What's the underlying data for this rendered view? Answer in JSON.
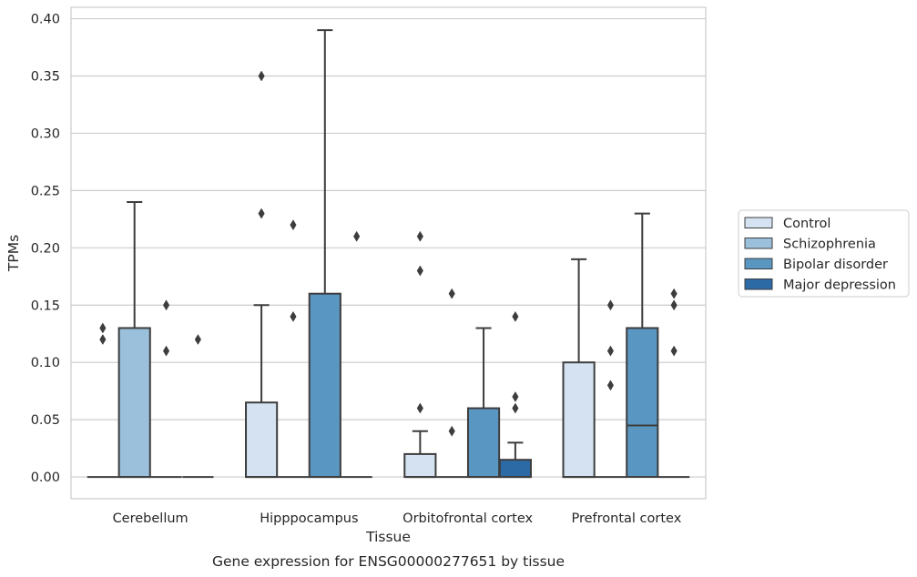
{
  "caption": "Gene expression for ENSG00000277651 by tissue",
  "chart_data": {
    "type": "box",
    "title": "",
    "xlabel": "Tissue",
    "ylabel": "TPMs",
    "ylim": [
      -0.019,
      0.41
    ],
    "yticks": [
      "0.00",
      "0.05",
      "0.10",
      "0.15",
      "0.20",
      "0.25",
      "0.30",
      "0.35",
      "0.40"
    ],
    "grid": "horizontal",
    "legend_position": "right",
    "categories": [
      "Cerebellum",
      "Hipppocampus",
      "Orbitofrontal cortex",
      "Prefrontal cortex"
    ],
    "series": [
      {
        "name": "Control",
        "color": "#d4e2f1",
        "boxes": [
          {
            "q1": 0,
            "median": 0,
            "q3": 0,
            "whisker_low": 0,
            "whisker_high": 0,
            "outliers": [
              0.12,
              0.13
            ]
          },
          {
            "q1": 0,
            "median": 0,
            "q3": 0.065,
            "whisker_low": 0,
            "whisker_high": 0.15,
            "outliers": [
              0.23,
              0.35
            ]
          },
          {
            "q1": 0,
            "median": 0,
            "q3": 0.02,
            "whisker_low": 0,
            "whisker_high": 0.04,
            "outliers": [
              0.06,
              0.18,
              0.21
            ]
          },
          {
            "q1": 0,
            "median": 0,
            "q3": 0.1,
            "whisker_low": 0,
            "whisker_high": 0.19,
            "outliers": []
          }
        ]
      },
      {
        "name": "Schizophrenia",
        "color": "#9ac0db",
        "boxes": [
          {
            "q1": 0,
            "median": 0,
            "q3": 0.13,
            "whisker_low": 0,
            "whisker_high": 0.24,
            "outliers": []
          },
          {
            "q1": 0,
            "median": 0,
            "q3": 0,
            "whisker_low": 0,
            "whisker_high": 0,
            "outliers": [
              0.14,
              0.22
            ]
          },
          {
            "q1": 0,
            "median": 0,
            "q3": 0,
            "whisker_low": 0,
            "whisker_high": 0,
            "outliers": [
              0.04,
              0.16
            ]
          },
          {
            "q1": 0,
            "median": 0,
            "q3": 0,
            "whisker_low": 0,
            "whisker_high": 0,
            "outliers": [
              0.08,
              0.11,
              0.15
            ]
          }
        ]
      },
      {
        "name": "Bipolar disorder",
        "color": "#5a96c2",
        "boxes": [
          {
            "q1": 0,
            "median": 0,
            "q3": 0,
            "whisker_low": 0,
            "whisker_high": 0,
            "outliers": [
              0.11,
              0.15
            ]
          },
          {
            "q1": 0,
            "median": 0,
            "q3": 0.16,
            "whisker_low": 0,
            "whisker_high": 0.39,
            "outliers": []
          },
          {
            "q1": 0,
            "median": 0,
            "q3": 0.06,
            "whisker_low": 0,
            "whisker_high": 0.13,
            "outliers": []
          },
          {
            "q1": 0,
            "median": 0.045,
            "q3": 0.13,
            "whisker_low": 0,
            "whisker_high": 0.23,
            "outliers": []
          }
        ]
      },
      {
        "name": "Major depression",
        "color": "#2c6aa6",
        "boxes": [
          {
            "q1": 0,
            "median": 0,
            "q3": 0,
            "whisker_low": 0,
            "whisker_high": 0,
            "outliers": [
              0.12
            ]
          },
          {
            "q1": 0,
            "median": 0,
            "q3": 0,
            "whisker_low": 0,
            "whisker_high": 0,
            "outliers": [
              0.21
            ]
          },
          {
            "q1": 0,
            "median": 0,
            "q3": 0.015,
            "whisker_low": 0,
            "whisker_high": 0.03,
            "outliers": [
              0.06,
              0.07,
              0.14
            ]
          },
          {
            "q1": 0,
            "median": 0,
            "q3": 0,
            "whisker_low": 0,
            "whisker_high": 0,
            "outliers": [
              0.11,
              0.15,
              0.16
            ]
          }
        ]
      }
    ]
  }
}
